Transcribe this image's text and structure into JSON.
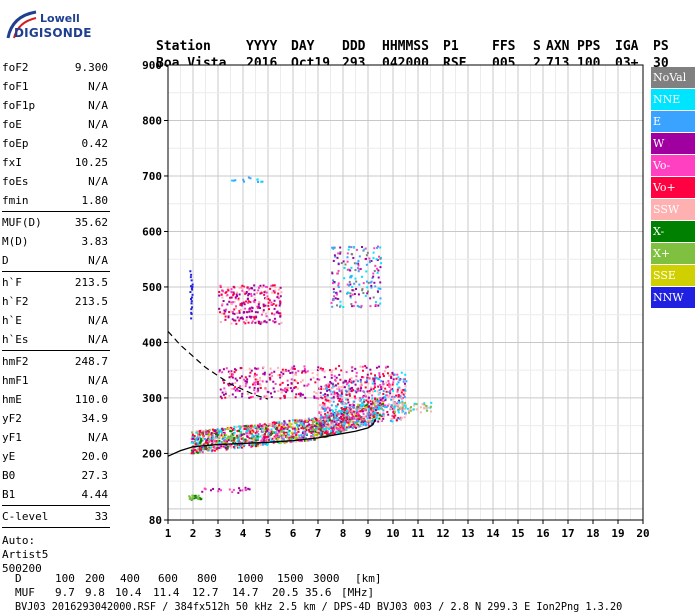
{
  "logo": {
    "brand": "Lowell",
    "name": "DIGISONDE"
  },
  "header": {
    "line1": [
      "Station",
      "YYYY",
      "DAY",
      "DDD",
      "HHMMSS",
      "P1",
      "FFS",
      "S",
      "AXN",
      "PPS",
      "IGA",
      "PS"
    ],
    "line2": [
      "Boa Vista",
      "2016",
      "Oct19",
      "293",
      "042000",
      "RSF",
      "005",
      "2",
      "713",
      "100",
      "03+",
      "30"
    ]
  },
  "params": {
    "group1": [
      {
        "label": "foF2",
        "value": "9.300"
      },
      {
        "label": "foF1",
        "value": "N/A"
      },
      {
        "label": "foF1p",
        "value": "N/A"
      },
      {
        "label": "foE",
        "value": "N/A"
      },
      {
        "label": "foEp",
        "value": "0.42"
      },
      {
        "label": "fxI",
        "value": "10.25"
      },
      {
        "label": "foEs",
        "value": "N/A"
      },
      {
        "label": "fmin",
        "value": "1.80"
      }
    ],
    "group2": [
      {
        "label": "MUF(D)",
        "value": "35.62"
      },
      {
        "label": "M(D)",
        "value": "3.83"
      },
      {
        "label": "D",
        "value": "N/A"
      }
    ],
    "group3": [
      {
        "label": "h`F",
        "value": "213.5"
      },
      {
        "label": "h`F2",
        "value": "213.5"
      },
      {
        "label": "h`E",
        "value": "N/A"
      },
      {
        "label": "h`Es",
        "value": "N/A"
      }
    ],
    "group4": [
      {
        "label": "hmF2",
        "value": "248.7"
      },
      {
        "label": "hmF1",
        "value": "N/A"
      },
      {
        "label": "hmE",
        "value": "110.0"
      },
      {
        "label": "yF2",
        "value": "34.9"
      },
      {
        "label": "yF1",
        "value": "N/A"
      },
      {
        "label": "yE",
        "value": "20.0"
      },
      {
        "label": "B0",
        "value": "27.3"
      },
      {
        "label": "B1",
        "value": "4.44"
      }
    ],
    "group5": [
      {
        "label": "C-level",
        "value": "33"
      }
    ],
    "auto": [
      "Auto:",
      "Artist5",
      "500200"
    ]
  },
  "legend": [
    {
      "label": "NoVal",
      "color": "#808080"
    },
    {
      "label": "NNE",
      "color": "#00e5ff"
    },
    {
      "label": "E",
      "color": "#3aa3ff"
    },
    {
      "label": "W",
      "color": "#a000a0"
    },
    {
      "label": "Vo-",
      "color": "#ff40c0"
    },
    {
      "label": "Vo+",
      "color": "#ff0040"
    },
    {
      "label": "SSW",
      "color": "#ffb0b0"
    },
    {
      "label": "X-",
      "color": "#008000"
    },
    {
      "label": "X+",
      "color": "#80c040"
    },
    {
      "label": "SSE",
      "color": "#d0d000"
    },
    {
      "label": "NNW",
      "color": "#2020e0"
    }
  ],
  "chart_data": {
    "type": "scatter",
    "xlim": [
      1,
      20
    ],
    "ylim": [
      80,
      900
    ],
    "x_ticks": [
      1,
      2,
      3,
      4,
      5,
      6,
      7,
      8,
      9,
      10,
      11,
      12,
      13,
      14,
      15,
      16,
      17,
      18,
      19,
      20
    ],
    "y_ticks": [
      80,
      200,
      300,
      400,
      500,
      600,
      700,
      800,
      900
    ],
    "grid": true,
    "trace_F2": {
      "x": [
        1.0,
        1.5,
        2.0,
        3.0,
        4.0,
        5.0,
        6.0,
        7.0,
        8.0,
        8.5,
        9.0,
        9.2,
        9.3
      ],
      "y": [
        195,
        205,
        212,
        216,
        218,
        220,
        223,
        228,
        236,
        240,
        246,
        252,
        262
      ]
    },
    "dashed_profile": {
      "x": [
        1.0,
        1.5,
        2.0,
        2.5,
        3.0,
        3.5,
        4.0,
        4.5,
        5.0
      ],
      "y": [
        420,
        395,
        375,
        355,
        340,
        325,
        315,
        305,
        298
      ]
    },
    "echo_clusters": [
      {
        "name": "F-trace",
        "x": [
          1.8,
          9.6
        ],
        "y": [
          215,
          300
        ]
      },
      {
        "name": "F-upper",
        "x": [
          3,
          10.5
        ],
        "y": [
          280,
          400
        ]
      },
      {
        "name": "2F",
        "x": [
          3,
          5.5
        ],
        "y": [
          420,
          520
        ]
      },
      {
        "name": "spread-high",
        "x": [
          7.5,
          9.5
        ],
        "y": [
          470,
          600
        ]
      },
      {
        "name": "low-E",
        "x": [
          1.8,
          3
        ],
        "y": [
          115,
          130
        ]
      }
    ]
  },
  "footer": {
    "d_label": "D",
    "d_values": [
      "100",
      "200",
      "400",
      "600",
      "800",
      "1000",
      "1500",
      "3000",
      "[km]"
    ],
    "muf_label": "MUF",
    "muf_values": [
      "9.7",
      "9.8",
      "10.4",
      "11.4",
      "12.7",
      "14.7",
      "20.5",
      "35.6",
      "[MHz]"
    ],
    "info": "BVJ03_2016293042000.RSF / 384fx512h 50 kHz 2.5 km / DPS-4D BVJ03 003 / 2.8 N 299.3 E Ion2Png 1.3.20"
  }
}
